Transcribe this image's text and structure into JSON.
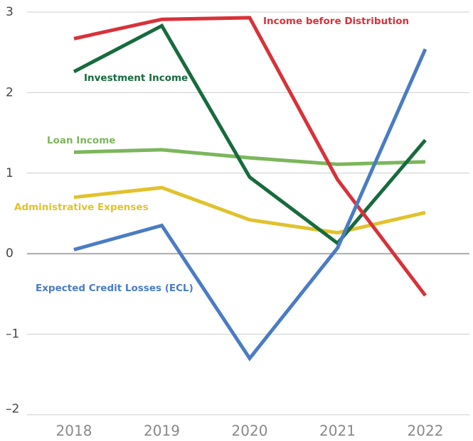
{
  "chart_data": {
    "type": "line",
    "x": [
      "2018",
      "2019",
      "2020",
      "2021",
      "2022"
    ],
    "series": [
      {
        "name": "Income before Distribution",
        "color": "#d7323a",
        "values": [
          2.67,
          2.91,
          2.93,
          0.92,
          -0.52
        ]
      },
      {
        "name": "Investment Income",
        "color": "#176b3d",
        "values": [
          2.26,
          2.83,
          0.95,
          0.13,
          1.41
        ]
      },
      {
        "name": "Loan Income",
        "color": "#7cb65c",
        "values": [
          1.26,
          1.29,
          1.19,
          1.11,
          1.14
        ]
      },
      {
        "name": "Administrative Expenses",
        "color": "#e1c22c",
        "values": [
          0.7,
          0.82,
          0.42,
          0.26,
          0.51
        ]
      },
      {
        "name": "Expected Credit Losses (ECL)",
        "color": "#4a7cc4",
        "values": [
          0.05,
          0.35,
          -1.3,
          0.07,
          2.54
        ]
      }
    ],
    "ylim": [
      -2,
      3
    ],
    "yticks": [
      {
        "value": -2,
        "label": "–2"
      },
      {
        "value": -1,
        "label": "–1"
      },
      0,
      1,
      2,
      3
    ],
    "grid": true
  }
}
